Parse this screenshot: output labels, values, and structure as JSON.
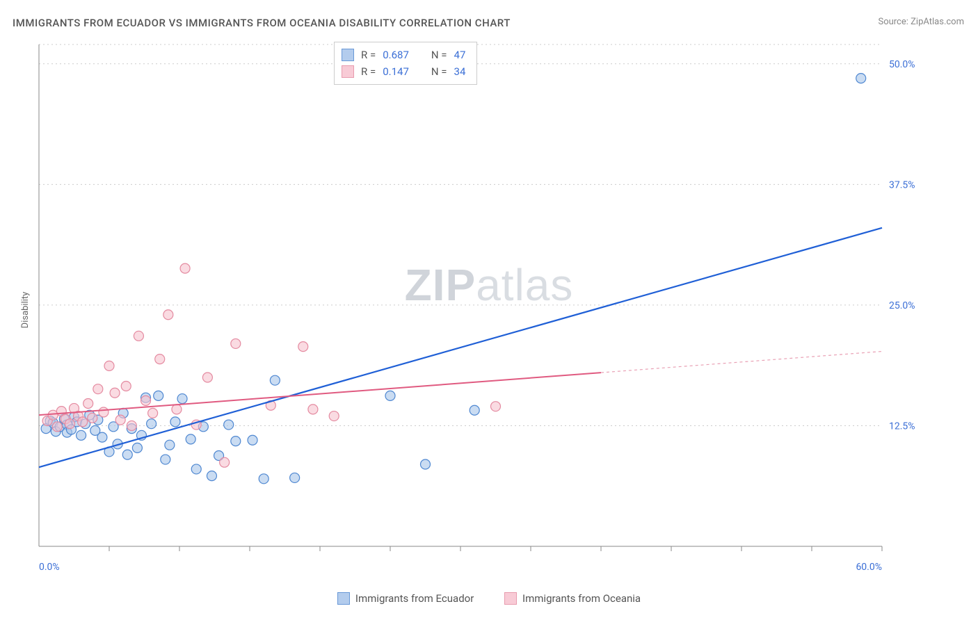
{
  "title": "IMMIGRANTS FROM ECUADOR VS IMMIGRANTS FROM OCEANIA DISABILITY CORRELATION CHART",
  "source_label": "Source: ZipAtlas.com",
  "ylabel": "Disability",
  "watermark_a": "ZIP",
  "watermark_b": "atlas",
  "chart": {
    "type": "scatter",
    "xlim": [
      0,
      60
    ],
    "ylim": [
      0,
      52
    ],
    "x_ticks_minor": [
      5,
      10,
      15,
      20,
      25,
      30,
      35,
      40,
      45,
      50,
      55,
      60
    ],
    "x_tick_labels": [
      {
        "v": 0,
        "label": "0.0%"
      },
      {
        "v": 60,
        "label": "60.0%"
      }
    ],
    "y_grid": [
      12.5,
      25.0,
      37.5,
      50.0,
      52.0
    ],
    "y_tick_labels": [
      {
        "v": 12.5,
        "label": "12.5%"
      },
      {
        "v": 25.0,
        "label": "25.0%"
      },
      {
        "v": 37.5,
        "label": "37.5%"
      },
      {
        "v": 50.0,
        "label": "50.0%"
      }
    ],
    "marker_radius": 7,
    "background_color": "#ffffff",
    "grid_color": "#cccccc",
    "series": [
      {
        "id": "ecuador",
        "label": "Immigrants from Ecuador",
        "color_fill": "#a6c4ea",
        "color_stroke": "#4e87d1",
        "reg_color": "#1f5fd6",
        "R": "0.687",
        "N": "47",
        "regression": {
          "x0": 0,
          "y0": 8.2,
          "x1": 60,
          "y1": 33.0,
          "solid_to": 60
        },
        "points": [
          [
            0.5,
            12.2
          ],
          [
            0.8,
            13.0
          ],
          [
            1.0,
            12.8
          ],
          [
            1.2,
            11.9
          ],
          [
            1.5,
            12.4
          ],
          [
            1.8,
            13.2
          ],
          [
            2.0,
            12.6
          ],
          [
            2.0,
            11.8
          ],
          [
            2.3,
            12.1
          ],
          [
            2.5,
            13.4
          ],
          [
            2.7,
            12.9
          ],
          [
            3.0,
            11.5
          ],
          [
            3.3,
            12.7
          ],
          [
            3.6,
            13.6
          ],
          [
            4.0,
            12.0
          ],
          [
            4.2,
            13.1
          ],
          [
            4.5,
            11.3
          ],
          [
            5.0,
            9.8
          ],
          [
            5.3,
            12.4
          ],
          [
            5.6,
            10.6
          ],
          [
            6.0,
            13.8
          ],
          [
            6.3,
            9.5
          ],
          [
            6.6,
            12.2
          ],
          [
            7.0,
            10.2
          ],
          [
            7.3,
            11.5
          ],
          [
            7.6,
            15.4
          ],
          [
            8.0,
            12.7
          ],
          [
            8.5,
            15.6
          ],
          [
            9.0,
            9.0
          ],
          [
            9.3,
            10.5
          ],
          [
            9.7,
            12.9
          ],
          [
            10.2,
            15.3
          ],
          [
            10.8,
            11.1
          ],
          [
            11.2,
            8.0
          ],
          [
            11.7,
            12.4
          ],
          [
            12.3,
            7.3
          ],
          [
            12.8,
            9.4
          ],
          [
            13.5,
            12.6
          ],
          [
            14.0,
            10.9
          ],
          [
            15.2,
            11.0
          ],
          [
            16.0,
            7.0
          ],
          [
            16.8,
            17.2
          ],
          [
            18.2,
            7.1
          ],
          [
            25.0,
            15.6
          ],
          [
            27.5,
            8.5
          ],
          [
            31.0,
            14.1
          ],
          [
            58.5,
            48.5
          ]
        ]
      },
      {
        "id": "oceania",
        "label": "Immigrants from Oceania",
        "color_fill": "#f7c3cf",
        "color_stroke": "#e48aa0",
        "reg_color": "#e05a80",
        "R": "0.147",
        "N": "34",
        "regression": {
          "x0": 0,
          "y0": 13.6,
          "x1": 60,
          "y1": 20.2,
          "solid_to": 40
        },
        "points": [
          [
            0.6,
            13.0
          ],
          [
            1.0,
            13.6
          ],
          [
            1.3,
            12.4
          ],
          [
            1.6,
            14.0
          ],
          [
            1.9,
            13.2
          ],
          [
            2.2,
            12.7
          ],
          [
            2.5,
            14.3
          ],
          [
            2.8,
            13.5
          ],
          [
            3.1,
            12.9
          ],
          [
            3.5,
            14.8
          ],
          [
            3.8,
            13.3
          ],
          [
            4.2,
            16.3
          ],
          [
            4.6,
            13.9
          ],
          [
            5.0,
            18.7
          ],
          [
            5.4,
            15.9
          ],
          [
            5.8,
            13.1
          ],
          [
            6.2,
            16.6
          ],
          [
            6.6,
            12.5
          ],
          [
            7.1,
            21.8
          ],
          [
            7.6,
            15.1
          ],
          [
            8.1,
            13.8
          ],
          [
            8.6,
            19.4
          ],
          [
            9.2,
            24.0
          ],
          [
            9.8,
            14.2
          ],
          [
            10.4,
            28.8
          ],
          [
            11.2,
            12.6
          ],
          [
            14.0,
            21.0
          ],
          [
            13.2,
            8.7
          ],
          [
            16.5,
            14.6
          ],
          [
            18.8,
            20.7
          ],
          [
            19.5,
            14.2
          ],
          [
            21.0,
            13.5
          ],
          [
            32.5,
            14.5
          ],
          [
            12.0,
            17.5
          ]
        ]
      }
    ]
  },
  "legend_rows": [
    {
      "swatch": "blue",
      "r_label": "R =",
      "r_val": "0.687",
      "n_label": "N =",
      "n_val": "47"
    },
    {
      "swatch": "pink",
      "r_label": "R =",
      "r_val": "0.147",
      "n_label": "N =",
      "n_val": "34"
    }
  ]
}
